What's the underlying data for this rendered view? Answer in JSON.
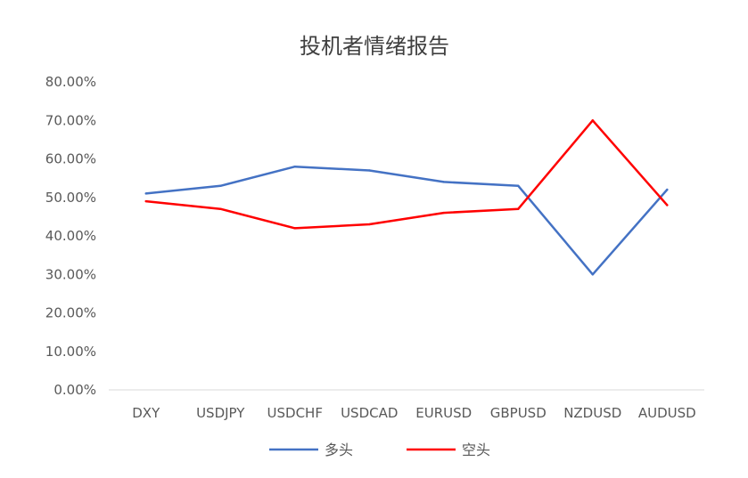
{
  "chart_data": {
    "type": "line",
    "title": "投机者情绪报告",
    "categories": [
      "DXY",
      "USDJPY",
      "USDCHF",
      "USDCAD",
      "EURUSD",
      "GBPUSD",
      "NZDUSD",
      "AUDUSD"
    ],
    "series": [
      {
        "name": "多头",
        "color": "#4472C4",
        "values": [
          0.51,
          0.53,
          0.58,
          0.57,
          0.54,
          0.53,
          0.3,
          0.52
        ]
      },
      {
        "name": "空头",
        "color": "#FF0000",
        "values": [
          0.49,
          0.47,
          0.42,
          0.43,
          0.46,
          0.47,
          0.7,
          0.48
        ]
      }
    ],
    "ylim": [
      0,
      0.8
    ],
    "y_ticks": [
      "0.00%",
      "10.00%",
      "20.00%",
      "30.00%",
      "40.00%",
      "50.00%",
      "60.00%",
      "70.00%",
      "80.00%"
    ],
    "grid": false,
    "legend_position": "bottom"
  }
}
